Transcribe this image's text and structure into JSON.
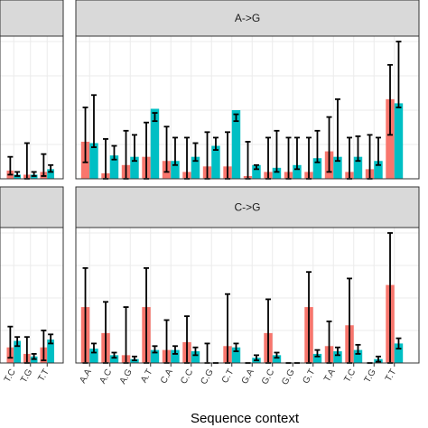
{
  "chart_data": {
    "type": "bar",
    "xlabel": "Sequence context",
    "categories": [
      "A.A",
      "A.C",
      "A.G",
      "A.T",
      "C.A",
      "C.C",
      "C.G",
      "C.T",
      "G.A",
      "G.C",
      "G.G",
      "G.T",
      "T.A",
      "T.C",
      "T.G",
      "T.T"
    ],
    "partial_categories": [
      "T.C",
      "T.G",
      "T.T"
    ],
    "series_colors": [
      "#f8766d",
      "#00bfc4"
    ],
    "grid": true,
    "panels": [
      {
        "label": "",
        "partial": true,
        "ylim": [
          0,
          1
        ],
        "series": [
          {
            "values": [
              0.06,
              0.03,
              0.05
            ]
          },
          {
            "values": [
              0.03,
              0.03,
              0.07
            ]
          }
        ],
        "errors": [
          {
            "lo": [
              0.03,
              0.0,
              0.02
            ],
            "hi": [
              0.16,
              0.26,
              0.18
            ]
          },
          {
            "lo": [
              0.02,
              0.02,
              0.05
            ],
            "hi": [
              0.05,
              0.05,
              0.1
            ]
          }
        ]
      },
      {
        "label": "A->G",
        "partial": false,
        "ylim": [
          0,
          1
        ],
        "series": [
          {
            "values": [
              0.27,
              0.04,
              0.1,
              0.16,
              0.13,
              0.05,
              0.09,
              0.09,
              0.02,
              0.05,
              0.05,
              0.05,
              0.2,
              0.05,
              0.07,
              0.58
            ]
          },
          {
            "values": [
              0.26,
              0.17,
              0.16,
              0.51,
              0.13,
              0.16,
              0.24,
              0.5,
              0.1,
              0.08,
              0.1,
              0.15,
              0.16,
              0.16,
              0.13,
              0.55
            ]
          }
        ],
        "errors": [
          {
            "lo": [
              0.12,
              0.0,
              0.0,
              0.0,
              0.05,
              0.0,
              0.0,
              0.0,
              0.0,
              0.0,
              0.0,
              0.0,
              0.05,
              0.0,
              0.0,
              0.32
            ]
          },
          {
            "hi": [
              0.61,
              0.24,
              0.32,
              0.42,
              0.3,
              0.26,
              0.3,
              0.42,
              0.1,
              0.35,
              0.3,
              0.35,
              0.58,
              0.31,
              0.3,
              1.0
            ]
          }
        ]
      },
      {
        "label": "",
        "partial": true,
        "ylim": [
          0,
          1
        ],
        "series": [
          {
            "values": [
              0.12,
              0.07,
              0.12
            ]
          },
          {
            "values": [
              0.17,
              0.05,
              0.18
            ]
          }
        ],
        "errors": [
          {
            "lo": [
              0.04,
              0.0,
              0.02
            ],
            "hi": [
              0.28,
              0.2,
              0.25
            ]
          },
          {
            "lo": [
              0.13,
              0.03,
              0.15
            ],
            "hi": [
              0.2,
              0.07,
              0.22
            ]
          }
        ]
      },
      {
        "label": "C->G",
        "partial": false,
        "ylim": [
          0,
          1
        ],
        "series": [
          {
            "values": [
              0.43,
              0.23,
              0.06,
              0.43,
              0.1,
              0.16,
              0.0,
              0.13,
              0.0,
              0.23,
              0.0,
              0.43,
              0.13,
              0.29,
              0.0,
              0.6
            ]
          },
          {
            "values": [
              0.11,
              0.06,
              0.03,
              0.1,
              0.1,
              0.09,
              0.0,
              0.12,
              0.04,
              0.06,
              0.0,
              0.07,
              0.09,
              0.1,
              0.03,
              0.15
            ]
          }
        ],
        "errors": [
          {
            "lo": [
              0.0,
              0.0,
              0.0,
              0.0,
              0.0,
              0.0,
              0.0,
              0.0,
              0.0,
              0.0,
              0.0,
              0.0,
              0.0,
              0.0,
              0.0,
              0.0
            ],
            "hi": [
              0.73,
              0.47,
              0.43,
              0.73,
              0.33,
              0.36,
              0.15,
              0.53,
              0.0,
              0.49,
              0.0,
              0.7,
              0.32,
              0.65,
              0.0,
              1.0
            ]
          },
          {
            "lo": [
              0.08,
              0.04,
              0.02,
              0.08,
              0.07,
              0.06,
              0.0,
              0.09,
              0.02,
              0.04,
              0.0,
              0.05,
              0.06,
              0.07,
              0.01,
              0.11
            ],
            "hi": [
              0.15,
              0.08,
              0.05,
              0.13,
              0.13,
              0.12,
              0.0,
              0.15,
              0.06,
              0.08,
              0.0,
              0.1,
              0.12,
              0.14,
              0.05,
              0.19
            ]
          }
        ]
      }
    ]
  }
}
